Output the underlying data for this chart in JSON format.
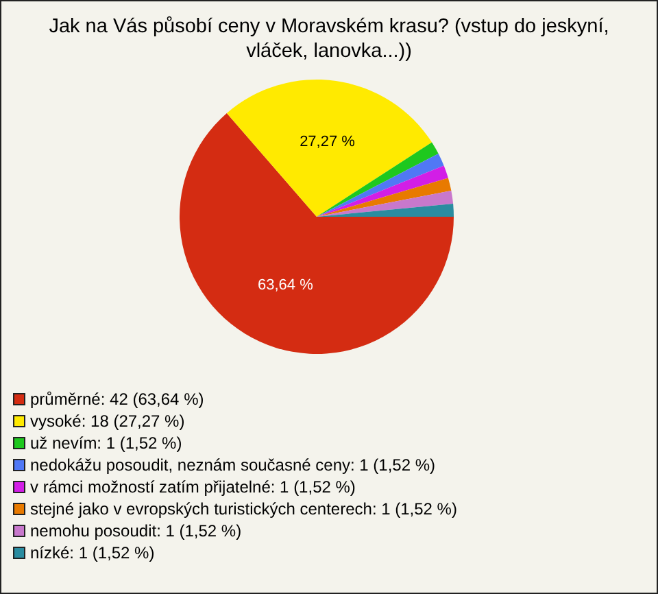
{
  "chart_data": {
    "type": "pie",
    "title": "Jak na Vás působí ceny v Moravském krasu? (vstup do jeskyní, vláček, lanovka...))",
    "categories": [
      "průměrné: 42 (63,64 %)",
      "vysoké: 18 (27,27 %)",
      "už nevím: 1 (1,52 %)",
      "nedokážu posoudit, neznám současné ceny: 1 (1,52 %)",
      "v rámci možností zatím přijatelné: 1 (1,52 %)",
      "stejné jako v evropských turistických centerech: 1 (1,52 %)",
      "nemohu posoudit: 1 (1,52 %)",
      "nízké: 1 (1,52 %)"
    ],
    "values": [
      63.64,
      27.27,
      1.52,
      1.52,
      1.52,
      1.52,
      1.52,
      1.52
    ],
    "colors": [
      "#d42c12",
      "#ffea00",
      "#1ec81e",
      "#5078f5",
      "#d21ee6",
      "#e87a00",
      "#c878cc",
      "#2a8ca0"
    ],
    "value_labels": [
      "63,64 %",
      "27,27 %",
      null,
      null,
      null,
      null,
      null,
      null
    ],
    "legend": "bottom left"
  }
}
